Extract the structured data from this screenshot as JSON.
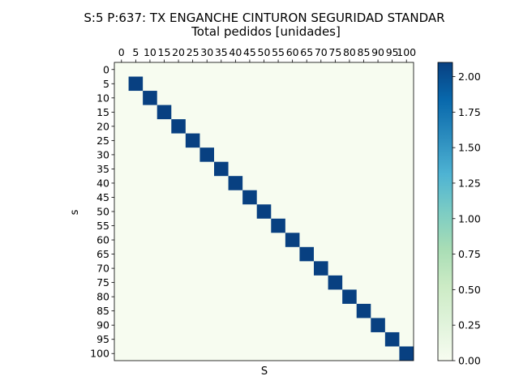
{
  "chart_data": {
    "type": "heatmap",
    "title": "S:5 P:637: TX ENGANCHE CINTURON SEGURIDAD STANDAR",
    "subtitle": "Total pedidos [unidades]",
    "xlabel": "S",
    "ylabel": "s",
    "x_ticks": [
      "0",
      "5",
      "10",
      "15",
      "20",
      "25",
      "30",
      "35",
      "40",
      "45",
      "50",
      "55",
      "60",
      "65",
      "70",
      "75",
      "80",
      "85",
      "90",
      "95",
      "100"
    ],
    "y_ticks": [
      "0",
      "5",
      "10",
      "15",
      "20",
      "25",
      "30",
      "35",
      "40",
      "45",
      "50",
      "55",
      "60",
      "65",
      "70",
      "75",
      "80",
      "85",
      "90",
      "95",
      "100"
    ],
    "xlim": [
      -2.5,
      102.5
    ],
    "ylim": [
      -2.5,
      102.5
    ],
    "x_axis_position": "top",
    "y_axis_inverted": true,
    "grid": false,
    "cell_size": 5,
    "cells_note": "",
    "cells": [
      {
        "s": 0,
        "S": 0,
        "value": 0
      },
      {
        "s": 5,
        "S": 5,
        "value": 2.1
      },
      {
        "s": 10,
        "S": 10,
        "value": 2.1
      },
      {
        "s": 15,
        "S": 15,
        "value": 2.1
      },
      {
        "s": 20,
        "S": 20,
        "value": 2.1
      },
      {
        "s": 25,
        "S": 25,
        "value": 2.1
      },
      {
        "s": 30,
        "S": 30,
        "value": 2.1
      },
      {
        "s": 35,
        "S": 35,
        "value": 2.1
      },
      {
        "s": 40,
        "S": 40,
        "value": 2.1
      },
      {
        "s": 45,
        "S": 45,
        "value": 2.1
      },
      {
        "s": 50,
        "S": 50,
        "value": 2.1
      },
      {
        "s": 55,
        "S": 55,
        "value": 2.1
      },
      {
        "s": 60,
        "S": 60,
        "value": 2.1
      },
      {
        "s": 65,
        "S": 65,
        "value": 2.1
      },
      {
        "s": 70,
        "S": 70,
        "value": 2.1
      },
      {
        "s": 75,
        "S": 75,
        "value": 2.1
      },
      {
        "s": 80,
        "S": 80,
        "value": 2.1
      },
      {
        "s": 85,
        "S": 85,
        "value": 2.1
      },
      {
        "s": 90,
        "S": 90,
        "value": 2.1
      },
      {
        "s": 95,
        "S": 95,
        "value": 2.1
      },
      {
        "s": 100,
        "S": 100,
        "value": 2.1
      }
    ],
    "background_value": 0,
    "colorbar": {
      "min": 0,
      "max": 2.1,
      "ticks": [
        "0.00",
        "0.25",
        "0.50",
        "0.75",
        "1.00",
        "1.25",
        "1.50",
        "1.75",
        "2.00"
      ],
      "colormap": "GnBu",
      "low_color": "#f7fcf0",
      "high_color": "#084081"
    }
  }
}
